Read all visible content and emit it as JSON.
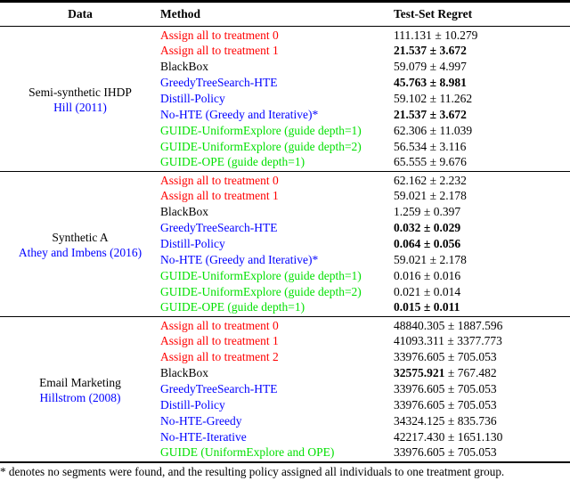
{
  "palette": {
    "red": "#FF0000",
    "blue": "#0000FF",
    "green": "#00E000",
    "black": "#000000",
    "cite_blue": "#0000FF"
  },
  "plus_minus": "±",
  "header": {
    "data": "Data",
    "method": "Method",
    "regret": "Test-Set Regret"
  },
  "groups": [
    {
      "dataset": {
        "name": "Semi-synthetic IHDP",
        "cite": "Hill (2011)"
      },
      "rows": [
        {
          "method": "Assign all to treatment 0",
          "color": "red",
          "mean": "111.131",
          "err": "10.279",
          "bold": "none"
        },
        {
          "method": "Assign all to treatment 1",
          "color": "red",
          "mean": "21.537",
          "err": "3.672",
          "bold": "full"
        },
        {
          "method": "BlackBox",
          "color": "black",
          "mean": "59.079",
          "err": "4.997",
          "bold": "none"
        },
        {
          "method": "GreedyTreeSearch-HTE",
          "color": "blue",
          "mean": "45.763",
          "err": "8.981",
          "bold": "full"
        },
        {
          "method": "Distill-Policy",
          "color": "blue",
          "mean": "59.102",
          "err": "11.262",
          "bold": "none"
        },
        {
          "method": "No-HTE (Greedy and Iterative)*",
          "color": "blue",
          "mean": "21.537",
          "err": "3.672",
          "bold": "full"
        },
        {
          "method": "GUIDE-UniformExplore (guide depth=1)",
          "color": "green",
          "mean": "62.306",
          "err": "11.039",
          "bold": "none"
        },
        {
          "method": "GUIDE-UniformExplore (guide depth=2)",
          "color": "green",
          "mean": "56.534",
          "err": "3.116",
          "bold": "none"
        },
        {
          "method": "GUIDE-OPE (guide depth=1)",
          "color": "green",
          "mean": "65.555",
          "err": "9.676",
          "bold": "none"
        }
      ]
    },
    {
      "dataset": {
        "name": "Synthetic A",
        "cite": "Athey and Imbens (2016)"
      },
      "rows": [
        {
          "method": "Assign all to treatment 0",
          "color": "red",
          "mean": "62.162",
          "err": "2.232",
          "bold": "none"
        },
        {
          "method": "Assign all to treatment 1",
          "color": "red",
          "mean": "59.021",
          "err": "2.178",
          "bold": "none"
        },
        {
          "method": "BlackBox",
          "color": "black",
          "mean": "1.259",
          "err": "0.397",
          "bold": "none"
        },
        {
          "method": "GreedyTreeSearch-HTE",
          "color": "blue",
          "mean": "0.032",
          "err": "0.029",
          "bold": "full"
        },
        {
          "method": "Distill-Policy",
          "color": "blue",
          "mean": "0.064",
          "err": "0.056",
          "bold": "full"
        },
        {
          "method": "No-HTE (Greedy and Iterative)*",
          "color": "blue",
          "mean": "59.021",
          "err": "2.178",
          "bold": "none"
        },
        {
          "method": "GUIDE-UniformExplore (guide depth=1)",
          "color": "green",
          "mean": "0.016",
          "err": "0.016",
          "bold": "none"
        },
        {
          "method": "GUIDE-UniformExplore (guide depth=2)",
          "color": "green",
          "mean": "0.021",
          "err": "0.014",
          "bold": "none"
        },
        {
          "method": "GUIDE-OPE (guide depth=1)",
          "color": "green",
          "mean": "0.015",
          "err": "0.011",
          "bold": "full"
        }
      ]
    },
    {
      "dataset": {
        "name": "Email Marketing",
        "cite": "Hillstrom (2008)"
      },
      "rows": [
        {
          "method": "Assign all to treatment 0",
          "color": "red",
          "mean": "48840.305",
          "err": "1887.596",
          "bold": "none"
        },
        {
          "method": "Assign all to treatment 1",
          "color": "red",
          "mean": "41093.311",
          "err": "3377.773",
          "bold": "none"
        },
        {
          "method": "Assign all to treatment 2",
          "color": "red",
          "mean": "33976.605",
          "err": "705.053",
          "bold": "none"
        },
        {
          "method": "BlackBox",
          "color": "black",
          "mean": "32575.921",
          "err": "767.482",
          "bold": "mean"
        },
        {
          "method": "GreedyTreeSearch-HTE",
          "color": "blue",
          "mean": "33976.605",
          "err": "705.053",
          "bold": "none"
        },
        {
          "method": "Distill-Policy",
          "color": "blue",
          "mean": "33976.605",
          "err": "705.053",
          "bold": "none"
        },
        {
          "method": "No-HTE-Greedy",
          "color": "blue",
          "mean": "34324.125",
          "err": "835.736",
          "bold": "none"
        },
        {
          "method": "No-HTE-Iterative",
          "color": "blue",
          "mean": "42217.430",
          "err": "1651.130",
          "bold": "none"
        },
        {
          "method": "GUIDE (UniformExplore and OPE)",
          "color": "green",
          "mean": "33976.605",
          "err": "705.053",
          "bold": "none"
        }
      ]
    }
  ],
  "footnote": "* denotes no segments were found, and the resulting policy assigned all individuals to one treatment group."
}
